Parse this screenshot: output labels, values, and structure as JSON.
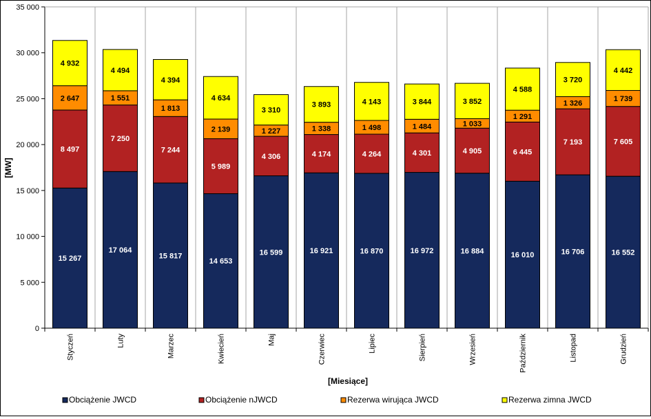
{
  "chart_data": {
    "type": "bar",
    "stacked": true,
    "title": "",
    "xlabel": "[Miesiące]",
    "ylabel": "[MW]",
    "ylim": [
      0,
      35000
    ],
    "yticks": [
      0,
      5000,
      10000,
      15000,
      20000,
      25000,
      30000,
      35000
    ],
    "ytick_labels": [
      "0",
      "5 000",
      "10 000",
      "15 000",
      "20 000",
      "25 000",
      "30 000",
      "35 000"
    ],
    "grid": "vertical category separators",
    "legend_position": "bottom",
    "categories": [
      "Styczeń",
      "Luty",
      "Marzec",
      "Kwiecień",
      "Maj",
      "Czerwiec",
      "Lipiec",
      "Sierpień",
      "Wrzesień",
      "Październik",
      "Listopad",
      "Grudzień"
    ],
    "series": [
      {
        "name": "Obciążenie JWCD",
        "color": "#15295c",
        "label_color": "#ffffff",
        "values": [
          15267,
          17064,
          15817,
          14653,
          16599,
          16921,
          16870,
          16972,
          16884,
          16010,
          16706,
          16552
        ],
        "labels": [
          "15 267",
          "17 064",
          "15 817",
          "14 653",
          "16 599",
          "16 921",
          "16 870",
          "16 972",
          "16 884",
          "16 010",
          "16 706",
          "16 552"
        ]
      },
      {
        "name": "Obciążenie nJWCD",
        "color": "#b22222",
        "label_color": "#ffffff",
        "values": [
          8497,
          7250,
          7244,
          5989,
          4306,
          4174,
          4264,
          4301,
          4905,
          6445,
          7193,
          7605
        ],
        "labels": [
          "8 497",
          "7 250",
          "7 244",
          "5 989",
          "4 306",
          "4 174",
          "4 264",
          "4 301",
          "4 905",
          "6 445",
          "7 193",
          "7 605"
        ]
      },
      {
        "name": "Rezerwa wirująca JWCD",
        "color": "#ff8c00",
        "label_color": "#000000",
        "values": [
          2647,
          1551,
          1813,
          2139,
          1227,
          1338,
          1498,
          1484,
          1033,
          1291,
          1326,
          1739
        ],
        "labels": [
          "2 647",
          "1 551",
          "1 813",
          "2 139",
          "1 227",
          "1 338",
          "1 498",
          "1 484",
          "1 033",
          "1 291",
          "1 326",
          "1 739"
        ]
      },
      {
        "name": "Rezerwa zimna JWCD",
        "color": "#ffff00",
        "label_color": "#000000",
        "values": [
          4932,
          4494,
          4394,
          4634,
          3310,
          3893,
          4143,
          3844,
          3852,
          4588,
          3720,
          4442
        ],
        "labels": [
          "4 932",
          "4 494",
          "4 394",
          "4 634",
          "3 310",
          "3 893",
          "4 143",
          "3 844",
          "3 852",
          "4 588",
          "3 720",
          "4 442"
        ]
      }
    ]
  }
}
